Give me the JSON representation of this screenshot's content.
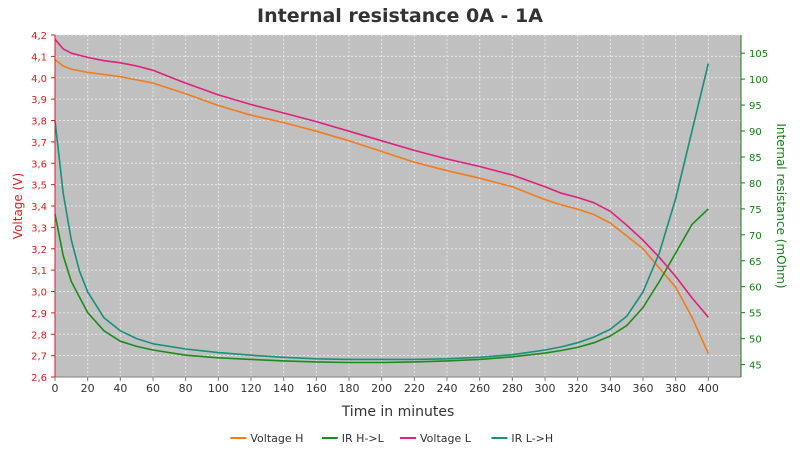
{
  "chart_data": {
    "type": "line",
    "title": "Internal resistance  0A - 1A",
    "xlabel": "Time in minutes",
    "ylabel_left": "Voltage (V)",
    "ylabel_right": "Internal resistance (mOhm)",
    "xlim": [
      0,
      420
    ],
    "ylim_left": [
      2.6,
      4.2
    ],
    "ylim_right": [
      42.6,
      108.5
    ],
    "x_ticks": [
      0,
      20,
      40,
      60,
      80,
      100,
      120,
      140,
      160,
      180,
      200,
      220,
      240,
      260,
      280,
      300,
      320,
      340,
      360,
      380,
      400
    ],
    "y_ticks_left": [
      "2,6",
      "2,7",
      "2,8",
      "2,9",
      "3,0",
      "3,1",
      "3,2",
      "3,3",
      "3,4",
      "3,5",
      "3,6",
      "3,7",
      "3,8",
      "3,9",
      "4,0",
      "4,1",
      "4,2"
    ],
    "y_ticks_left_values": [
      2.6,
      2.7,
      2.8,
      2.9,
      3.0,
      3.1,
      3.2,
      3.3,
      3.4,
      3.5,
      3.6,
      3.7,
      3.8,
      3.9,
      4.0,
      4.1,
      4.2
    ],
    "y_ticks_right": [
      45,
      50,
      55,
      60,
      65,
      70,
      75,
      80,
      85,
      90,
      95,
      100,
      105
    ],
    "grid": true,
    "legend_position": "bottom",
    "colors": {
      "plot_background": "#c0c0c0",
      "grid": "#e6e6e6",
      "left_axis": "#d42020",
      "right_axis": "#108010",
      "voltage_h": "#f07c1c",
      "ir_hl": "#1a8c1a",
      "voltage_l": "#e0207c",
      "ir_lh": "#18907a"
    },
    "series": [
      {
        "name": "Voltage H",
        "axis": "left",
        "color": "#f07c1c",
        "x": [
          0,
          5,
          10,
          20,
          30,
          40,
          50,
          60,
          70,
          80,
          100,
          120,
          140,
          160,
          180,
          200,
          220,
          240,
          260,
          280,
          300,
          310,
          320,
          330,
          340,
          350,
          360,
          370,
          380,
          390,
          400
        ],
        "y": [
          4.085,
          4.055,
          4.04,
          4.025,
          4.015,
          4.005,
          3.99,
          3.975,
          3.95,
          3.925,
          3.87,
          3.825,
          3.79,
          3.75,
          3.705,
          3.655,
          3.605,
          3.565,
          3.53,
          3.49,
          3.43,
          3.405,
          3.385,
          3.36,
          3.32,
          3.26,
          3.2,
          3.11,
          3.02,
          2.88,
          2.71
        ]
      },
      {
        "name": "IR H->L",
        "axis": "right",
        "color": "#1a8c1a",
        "x": [
          0,
          5,
          10,
          15,
          20,
          30,
          40,
          50,
          60,
          80,
          100,
          120,
          140,
          160,
          180,
          200,
          220,
          240,
          260,
          280,
          300,
          310,
          320,
          330,
          340,
          350,
          360,
          370,
          380,
          390,
          400
        ],
        "y": [
          74,
          66,
          61,
          58,
          55,
          51.5,
          49.5,
          48.5,
          47.8,
          46.8,
          46.3,
          46,
          45.7,
          45.5,
          45.4,
          45.4,
          45.5,
          45.7,
          46,
          46.5,
          47.2,
          47.7,
          48.3,
          49.2,
          50.5,
          52.5,
          56,
          61,
          66.5,
          72,
          75
        ]
      },
      {
        "name": "Voltage L",
        "axis": "left",
        "color": "#e0207c",
        "x": [
          0,
          5,
          10,
          20,
          30,
          40,
          50,
          60,
          70,
          80,
          100,
          120,
          140,
          160,
          180,
          200,
          220,
          240,
          260,
          280,
          300,
          310,
          320,
          330,
          340,
          350,
          360,
          370,
          380,
          390,
          400
        ],
        "y": [
          4.18,
          4.135,
          4.115,
          4.095,
          4.08,
          4.07,
          4.055,
          4.035,
          4.005,
          3.975,
          3.92,
          3.875,
          3.835,
          3.795,
          3.75,
          3.705,
          3.66,
          3.62,
          3.585,
          3.545,
          3.49,
          3.46,
          3.44,
          3.415,
          3.375,
          3.31,
          3.24,
          3.16,
          3.07,
          2.97,
          2.88
        ]
      },
      {
        "name": "IR L->H",
        "axis": "right",
        "color": "#18907a",
        "x": [
          0,
          5,
          10,
          15,
          20,
          30,
          40,
          50,
          60,
          80,
          100,
          120,
          140,
          160,
          180,
          200,
          220,
          240,
          260,
          280,
          300,
          310,
          320,
          330,
          340,
          350,
          360,
          370,
          380,
          390,
          400
        ],
        "y": [
          92,
          78,
          69,
          63,
          59,
          54,
          51.5,
          50,
          49,
          48,
          47.3,
          46.8,
          46.4,
          46.1,
          46,
          46,
          46,
          46.1,
          46.4,
          46.9,
          47.8,
          48.4,
          49.2,
          50.3,
          51.8,
          54.3,
          59,
          66.5,
          77,
          90,
          103
        ]
      }
    ]
  }
}
